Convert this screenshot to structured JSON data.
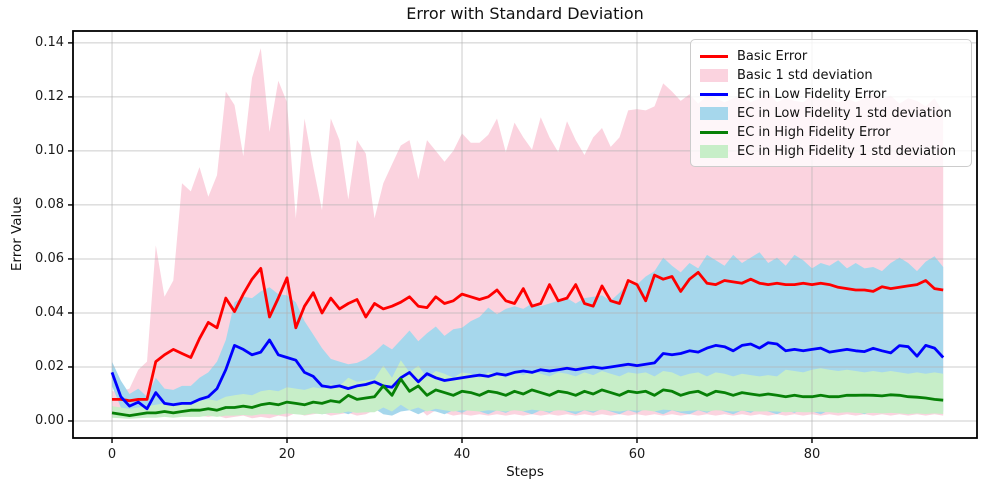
{
  "chart_data": {
    "type": "line",
    "title": "Error with Standard Deviation",
    "xlabel": "Steps",
    "ylabel": "Error Value",
    "grid": true,
    "legend_position": "upper right",
    "xlim": [
      -4.46,
      98.86
    ],
    "ylim": [
      -0.0063,
      0.1444
    ],
    "x_ticks": [
      {
        "value": 0,
        "label": "0"
      },
      {
        "value": 20,
        "label": "20"
      },
      {
        "value": 40,
        "label": "40"
      },
      {
        "value": 60,
        "label": "60"
      },
      {
        "value": 80,
        "label": "80"
      }
    ],
    "y_ticks": [
      {
        "value": 0.0,
        "label": "0.00"
      },
      {
        "value": 0.02,
        "label": "0.02"
      },
      {
        "value": 0.04,
        "label": "0.04"
      },
      {
        "value": 0.06,
        "label": "0.06"
      },
      {
        "value": 0.08,
        "label": "0.08"
      },
      {
        "value": 0.1,
        "label": "0.10"
      },
      {
        "value": 0.12,
        "label": "0.12"
      },
      {
        "value": 0.14,
        "label": "0.14"
      }
    ],
    "grid_color": "#b0b0b0",
    "spine_color": "#000000",
    "x": [
      0,
      1,
      2,
      3,
      4,
      5,
      6,
      7,
      8,
      9,
      10,
      11,
      12,
      13,
      14,
      15,
      16,
      17,
      18,
      19,
      20,
      21,
      22,
      23,
      24,
      25,
      26,
      27,
      28,
      29,
      30,
      31,
      32,
      33,
      34,
      35,
      36,
      37,
      38,
      39,
      40,
      41,
      42,
      43,
      44,
      45,
      46,
      47,
      48,
      49,
      50,
      51,
      52,
      53,
      54,
      55,
      56,
      57,
      58,
      59,
      60,
      61,
      62,
      63,
      64,
      65,
      66,
      67,
      68,
      69,
      70,
      71,
      72,
      73,
      74,
      75,
      76,
      77,
      78,
      79,
      80,
      81,
      82,
      83,
      84,
      85,
      86,
      87,
      88,
      89,
      90,
      91,
      92,
      93,
      94,
      95
    ],
    "series": [
      {
        "name": "Basic Error",
        "kind": "line",
        "color": "#ff0000",
        "values": [
          0.008,
          0.008,
          0.0075,
          0.008,
          0.008,
          0.022,
          0.0245,
          0.0265,
          0.025,
          0.0235,
          0.0305,
          0.0365,
          0.0345,
          0.0455,
          0.0405,
          0.047,
          0.0525,
          0.0565,
          0.0385,
          0.0455,
          0.053,
          0.0345,
          0.0425,
          0.0475,
          0.04,
          0.0455,
          0.0415,
          0.0435,
          0.045,
          0.0385,
          0.0435,
          0.0415,
          0.0425,
          0.044,
          0.046,
          0.0425,
          0.042,
          0.046,
          0.0435,
          0.0445,
          0.047,
          0.046,
          0.045,
          0.046,
          0.0485,
          0.0445,
          0.0435,
          0.049,
          0.0425,
          0.0435,
          0.0505,
          0.0445,
          0.0455,
          0.0505,
          0.0435,
          0.0425,
          0.05,
          0.0445,
          0.0435,
          0.052,
          0.0505,
          0.0445,
          0.054,
          0.0525,
          0.0535,
          0.048,
          0.0525,
          0.055,
          0.051,
          0.0505,
          0.052,
          0.0515,
          0.051,
          0.0525,
          0.051,
          0.0505,
          0.051,
          0.0505,
          0.0505,
          0.051,
          0.0505,
          0.051,
          0.0505,
          0.0495,
          0.049,
          0.0485,
          0.0485,
          0.048,
          0.0497,
          0.049,
          0.0495,
          0.05,
          0.0505,
          0.052,
          0.049,
          0.0485
        ]
      },
      {
        "name": "Basic 1 std deviation",
        "kind": "band",
        "color": "#fbd3df",
        "upper": [
          0.011,
          0.011,
          0.012,
          0.019,
          0.022,
          0.065,
          0.046,
          0.052,
          0.088,
          0.085,
          0.094,
          0.083,
          0.091,
          0.122,
          0.117,
          0.098,
          0.127,
          0.138,
          0.107,
          0.126,
          0.118,
          0.075,
          0.112,
          0.094,
          0.078,
          0.112,
          0.104,
          0.082,
          0.104,
          0.099,
          0.075,
          0.088,
          0.095,
          0.102,
          0.104,
          0.0895,
          0.104,
          0.1,
          0.096,
          0.1,
          0.1065,
          0.103,
          0.103,
          0.106,
          0.112,
          0.0995,
          0.1105,
          0.105,
          0.1005,
          0.1125,
          0.105,
          0.0995,
          0.111,
          0.104,
          0.0985,
          0.105,
          0.1085,
          0.1015,
          0.105,
          0.115,
          0.1155,
          0.115,
          0.1165,
          0.125,
          0.122,
          0.1185,
          0.121,
          0.1175,
          0.1205,
          0.1195,
          0.118,
          0.1195,
          0.1205,
          0.118,
          0.1195,
          0.1215,
          0.118,
          0.1195,
          0.1185,
          0.118,
          0.1205,
          0.119,
          0.1195,
          0.118,
          0.1195,
          0.118,
          0.1195,
          0.1215,
          0.119,
          0.1205,
          0.1175,
          0.1195,
          0.1185,
          0.1165,
          0.1195,
          0.1145
        ],
        "lower": [
          0.005,
          0.005,
          0.004,
          0.002,
          0.002,
          0.003,
          0.003,
          0.004,
          0.002,
          0.0015,
          0.002,
          0.0015,
          0.002,
          0.001,
          0.0015,
          0.002,
          0.001,
          0.0015,
          0.001,
          0.002,
          0.0015,
          0.003,
          0.002,
          0.0025,
          0.003,
          0.002,
          0.0025,
          0.003,
          0.002,
          0.0025,
          0.004,
          0.006,
          0.003,
          0.007,
          0.004,
          0.005,
          0.002,
          0.004,
          0.003,
          0.002,
          0.0025,
          0.002,
          0.0025,
          0.002,
          0.0025,
          0.002,
          0.0025,
          0.002,
          0.0025,
          0.002,
          0.0025,
          0.002,
          0.0025,
          0.002,
          0.0025,
          0.002,
          0.0025,
          0.002,
          0.0025,
          0.002,
          0.0025,
          0.002,
          0.0025,
          0.002,
          0.0025,
          0.002,
          0.0025,
          0.002,
          0.0025,
          0.002,
          0.0025,
          0.002,
          0.0025,
          0.002,
          0.0025,
          0.002,
          0.0025,
          0.002,
          0.0025,
          0.002,
          0.0025,
          0.002,
          0.0025,
          0.002,
          0.0025,
          0.002,
          0.0025,
          0.002,
          0.0025,
          0.002,
          0.0025,
          0.002,
          0.0025,
          0.002,
          0.0025,
          0.002
        ]
      },
      {
        "name": "EC in Low Fidelity Error",
        "kind": "line",
        "color": "#0000ff",
        "values": [
          0.018,
          0.009,
          0.0055,
          0.007,
          0.0045,
          0.0105,
          0.0065,
          0.006,
          0.0065,
          0.0065,
          0.008,
          0.009,
          0.012,
          0.019,
          0.028,
          0.0265,
          0.0245,
          0.0255,
          0.03,
          0.0245,
          0.0235,
          0.0225,
          0.018,
          0.0165,
          0.013,
          0.0125,
          0.013,
          0.012,
          0.013,
          0.0135,
          0.0145,
          0.013,
          0.0125,
          0.016,
          0.018,
          0.0145,
          0.0175,
          0.016,
          0.015,
          0.0155,
          0.016,
          0.0165,
          0.017,
          0.0165,
          0.0175,
          0.017,
          0.018,
          0.0185,
          0.018,
          0.019,
          0.0185,
          0.019,
          0.0195,
          0.019,
          0.0195,
          0.02,
          0.0195,
          0.02,
          0.0205,
          0.021,
          0.0205,
          0.021,
          0.0215,
          0.025,
          0.0245,
          0.025,
          0.026,
          0.0255,
          0.027,
          0.028,
          0.0275,
          0.026,
          0.028,
          0.0285,
          0.027,
          0.029,
          0.0285,
          0.026,
          0.0265,
          0.026,
          0.0265,
          0.027,
          0.0255,
          0.026,
          0.0265,
          0.026,
          0.0257,
          0.0269,
          0.026,
          0.0252,
          0.0279,
          0.0275,
          0.024,
          0.028,
          0.027,
          0.0235
        ]
      },
      {
        "name": "EC in Low Fidelity 1 std deviation",
        "kind": "band",
        "color": "#a6d7ec",
        "upper": [
          0.022,
          0.015,
          0.01,
          0.012,
          0.009,
          0.016,
          0.012,
          0.0115,
          0.013,
          0.013,
          0.016,
          0.018,
          0.022,
          0.03,
          0.044,
          0.046,
          0.0455,
          0.048,
          0.0495,
          0.047,
          0.0465,
          0.044,
          0.037,
          0.032,
          0.027,
          0.023,
          0.022,
          0.021,
          0.0215,
          0.023,
          0.0255,
          0.0285,
          0.0265,
          0.03,
          0.0335,
          0.0295,
          0.0325,
          0.035,
          0.0315,
          0.034,
          0.0345,
          0.037,
          0.0385,
          0.042,
          0.0395,
          0.0415,
          0.0425,
          0.0415,
          0.0435,
          0.0425,
          0.0435,
          0.0445,
          0.0455,
          0.0435,
          0.0455,
          0.046,
          0.0465,
          0.0445,
          0.0475,
          0.051,
          0.0505,
          0.0535,
          0.0555,
          0.0605,
          0.0575,
          0.055,
          0.0585,
          0.0565,
          0.0615,
          0.0595,
          0.0575,
          0.0615,
          0.0585,
          0.0605,
          0.0625,
          0.0585,
          0.0605,
          0.0575,
          0.0615,
          0.0595,
          0.0565,
          0.0585,
          0.0575,
          0.0595,
          0.0565,
          0.0585,
          0.0565,
          0.057,
          0.0555,
          0.0585,
          0.0605,
          0.0585,
          0.0555,
          0.059,
          0.061,
          0.057
        ],
        "lower": [
          0.013,
          0.005,
          0.002,
          0.003,
          0.0015,
          0.005,
          0.0025,
          0.002,
          0.0025,
          0.0025,
          0.003,
          0.0025,
          0.003,
          0.004,
          0.005,
          0.0045,
          0.004,
          0.0045,
          0.005,
          0.004,
          0.0035,
          0.004,
          0.003,
          0.0035,
          0.0025,
          0.003,
          0.0035,
          0.0025,
          0.004,
          0.0035,
          0.0045,
          0.0025,
          0.002,
          0.0035,
          0.004,
          0.0025,
          0.004,
          0.0035,
          0.0025,
          0.004,
          0.003,
          0.0045,
          0.0035,
          0.0025,
          0.004,
          0.003,
          0.0045,
          0.0035,
          0.0025,
          0.004,
          0.003,
          0.0045,
          0.0035,
          0.0025,
          0.004,
          0.003,
          0.0045,
          0.0035,
          0.0025,
          0.004,
          0.003,
          0.0045,
          0.0035,
          0.0025,
          0.004,
          0.003,
          0.0025,
          0.004,
          0.003,
          0.0045,
          0.0035,
          0.0025,
          0.004,
          0.003,
          0.0045,
          0.0035,
          0.0025,
          0.004,
          0.003,
          0.0045,
          0.0035,
          0.0025,
          0.004,
          0.003,
          0.0045,
          0.0035,
          0.0025,
          0.004,
          0.003,
          0.0045,
          0.0035,
          0.0025,
          0.004,
          0.003,
          0.0045,
          0.0035
        ]
      },
      {
        "name": "EC in High Fidelity Error",
        "kind": "line",
        "color": "#078007",
        "values": [
          0.003,
          0.0025,
          0.002,
          0.0025,
          0.003,
          0.003,
          0.0035,
          0.003,
          0.0035,
          0.004,
          0.004,
          0.0045,
          0.004,
          0.005,
          0.005,
          0.0055,
          0.005,
          0.006,
          0.0065,
          0.006,
          0.007,
          0.0065,
          0.006,
          0.007,
          0.0065,
          0.0075,
          0.007,
          0.0095,
          0.008,
          0.0085,
          0.009,
          0.013,
          0.0095,
          0.0155,
          0.011,
          0.013,
          0.0095,
          0.0115,
          0.0105,
          0.0095,
          0.011,
          0.0105,
          0.0095,
          0.011,
          0.0105,
          0.0095,
          0.011,
          0.01,
          0.0115,
          0.0105,
          0.0095,
          0.011,
          0.0105,
          0.0095,
          0.011,
          0.01,
          0.0115,
          0.0105,
          0.0095,
          0.011,
          0.0105,
          0.011,
          0.0095,
          0.0115,
          0.011,
          0.0095,
          0.0105,
          0.011,
          0.0095,
          0.011,
          0.0105,
          0.0095,
          0.0105,
          0.01,
          0.0095,
          0.01,
          0.0095,
          0.009,
          0.0095,
          0.009,
          0.009,
          0.0095,
          0.009,
          0.009,
          0.0095,
          0.0095,
          0.0096,
          0.0095,
          0.0093,
          0.0097,
          0.0095,
          0.009,
          0.0088,
          0.0085,
          0.008,
          0.0077
        ]
      },
      {
        "name": "EC in High Fidelity 1 std deviation",
        "kind": "band",
        "color": "#c7eec8",
        "upper": [
          0.0055,
          0.005,
          0.0045,
          0.005,
          0.0055,
          0.006,
          0.0065,
          0.006,
          0.0065,
          0.007,
          0.0075,
          0.008,
          0.0075,
          0.009,
          0.0095,
          0.01,
          0.0095,
          0.011,
          0.0115,
          0.011,
          0.0125,
          0.012,
          0.0115,
          0.0125,
          0.012,
          0.0135,
          0.013,
          0.016,
          0.0145,
          0.015,
          0.0155,
          0.0205,
          0.016,
          0.0225,
          0.018,
          0.0205,
          0.016,
          0.0185,
          0.0175,
          0.016,
          0.018,
          0.0175,
          0.016,
          0.018,
          0.0175,
          0.016,
          0.018,
          0.017,
          0.0185,
          0.0175,
          0.0165,
          0.018,
          0.0175,
          0.0165,
          0.018,
          0.017,
          0.0185,
          0.0175,
          0.0165,
          0.018,
          0.0175,
          0.018,
          0.0165,
          0.0185,
          0.018,
          0.0165,
          0.0175,
          0.018,
          0.0165,
          0.018,
          0.0175,
          0.0165,
          0.0175,
          0.017,
          0.0165,
          0.017,
          0.0165,
          0.019,
          0.0185,
          0.018,
          0.019,
          0.0195,
          0.019,
          0.0185,
          0.019,
          0.0185,
          0.018,
          0.0185,
          0.018,
          0.0185,
          0.018,
          0.0175,
          0.018,
          0.0175,
          0.018,
          0.0175
        ],
        "lower": [
          0.0012,
          0.001,
          0.0008,
          0.001,
          0.0012,
          0.0012,
          0.0015,
          0.0012,
          0.0015,
          0.0015,
          0.0015,
          0.002,
          0.0015,
          0.002,
          0.002,
          0.0022,
          0.002,
          0.0025,
          0.0025,
          0.0022,
          0.0028,
          0.0025,
          0.0022,
          0.0028,
          0.0025,
          0.003,
          0.0028,
          0.0035,
          0.003,
          0.0032,
          0.0032,
          0.005,
          0.0035,
          0.006,
          0.004,
          0.005,
          0.0035,
          0.0045,
          0.004,
          0.0035,
          0.004,
          0.0038,
          0.0035,
          0.004,
          0.0038,
          0.0035,
          0.004,
          0.0036,
          0.0042,
          0.0038,
          0.0035,
          0.004,
          0.0038,
          0.0035,
          0.004,
          0.0036,
          0.0042,
          0.0038,
          0.0035,
          0.004,
          0.0038,
          0.004,
          0.0035,
          0.0042,
          0.004,
          0.0035,
          0.0038,
          0.004,
          0.0035,
          0.004,
          0.0038,
          0.0035,
          0.0038,
          0.0036,
          0.0035,
          0.0036,
          0.0035,
          0.0032,
          0.0034,
          0.0032,
          0.0032,
          0.0034,
          0.0032,
          0.003,
          0.0032,
          0.003,
          0.0028,
          0.003,
          0.0028,
          0.003,
          0.0028,
          0.0026,
          0.0028,
          0.0026,
          0.0028,
          0.0026
        ]
      }
    ]
  }
}
